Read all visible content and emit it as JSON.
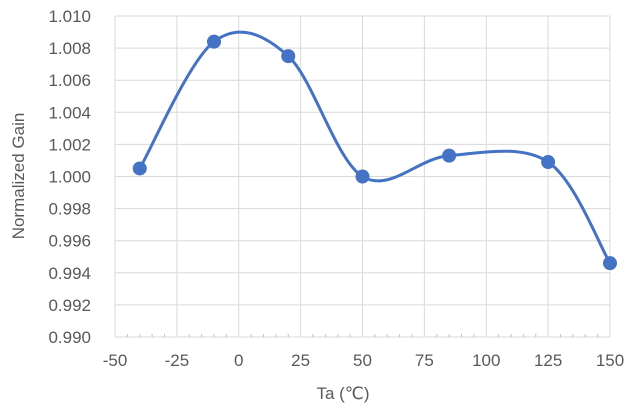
{
  "chart_data": {
    "type": "line",
    "title": "",
    "xlabel": "Ta  (℃)",
    "ylabel": "Normalized Gain",
    "xlim": [
      -50,
      150
    ],
    "ylim": [
      0.99,
      1.01
    ],
    "x_ticks": [
      -50,
      -25,
      0,
      25,
      50,
      75,
      100,
      125,
      150
    ],
    "x_tick_labels": [
      "-50",
      "-25",
      "0",
      "25",
      "50",
      "75",
      "100",
      "125",
      "150"
    ],
    "y_ticks": [
      0.99,
      0.992,
      0.994,
      0.996,
      0.998,
      1.0,
      1.002,
      1.004,
      1.006,
      1.008,
      1.01
    ],
    "y_tick_labels": [
      "0.990",
      "0.992",
      "0.994",
      "0.996",
      "0.998",
      "1.000",
      "1.002",
      "1.004",
      "1.006",
      "1.008",
      "1.010"
    ],
    "grid": true,
    "smooth": true,
    "legend": "none",
    "series": [
      {
        "color": "#4472C4",
        "points": [
          {
            "x": -40,
            "y": 1.0005
          },
          {
            "x": -10,
            "y": 1.0084
          },
          {
            "x": 20,
            "y": 1.0075
          },
          {
            "x": 50,
            "y": 1.0
          },
          {
            "x": 85,
            "y": 1.0013
          },
          {
            "x": 125,
            "y": 1.0009
          },
          {
            "x": 150,
            "y": 0.9946
          }
        ]
      }
    ]
  }
}
